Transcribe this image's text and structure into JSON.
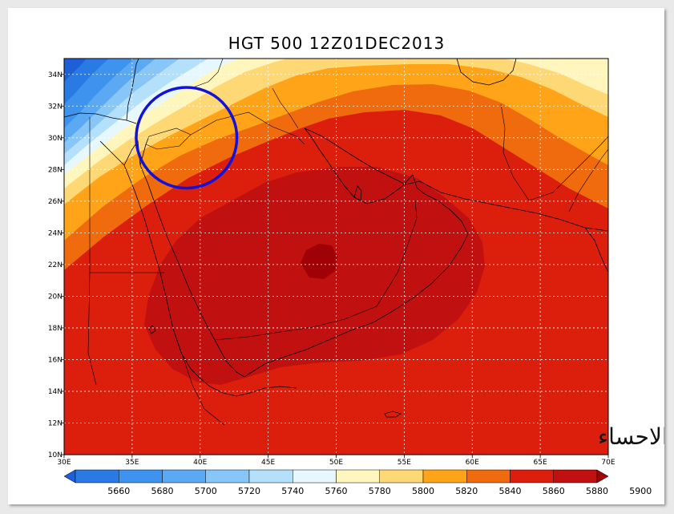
{
  "chart_data": {
    "type": "heatmap",
    "title": "HGT 500 12Z01DEC2013",
    "variable": "HGT",
    "level": "500",
    "time": "12Z01DEC2013",
    "xlim": [
      30,
      70
    ],
    "ylim": [
      10,
      35
    ],
    "x_ticks": [
      "30E",
      "35E",
      "40E",
      "45E",
      "50E",
      "55E",
      "60E",
      "65E",
      "70E"
    ],
    "y_ticks": [
      "10N",
      "12N",
      "14N",
      "16N",
      "18N",
      "20N",
      "22N",
      "24N",
      "26N",
      "28N",
      "30N",
      "32N",
      "34N"
    ],
    "grid": true,
    "colorbar": {
      "levels": [
        "5660",
        "5680",
        "5700",
        "5720",
        "5740",
        "5760",
        "5780",
        "5800",
        "5820",
        "5840",
        "5860",
        "5880",
        "5900"
      ],
      "colors": [
        "#1c5fd6",
        "#2a7ae6",
        "#3d93ee",
        "#5aa9f2",
        "#88c6f8",
        "#b4e0fb",
        "#e6f8fd",
        "#fff6bd",
        "#ffd876",
        "#ffa419",
        "#f06a0e",
        "#dc1f0d",
        "#c0100f",
        "#9e0206"
      ]
    },
    "highlight_circle_center": [
      39,
      30
    ],
    "highlight_circle_radius_deg": 3.7
  },
  "watermark": "براري الاحساء"
}
